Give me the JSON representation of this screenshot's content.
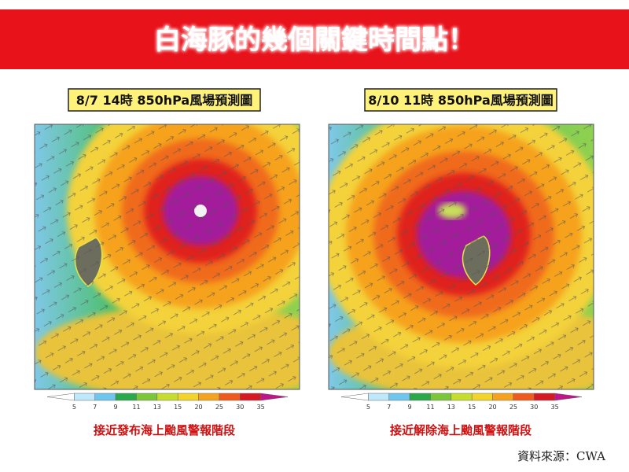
{
  "header": {
    "title": "白海豚的幾個關鍵時間點！"
  },
  "panels": [
    {
      "label": "8/7 14時 850hPa風場預測圖",
      "colorbar_ticks": [
        5,
        7,
        9,
        11,
        13,
        15,
        20,
        25,
        30,
        35
      ],
      "caption": "接近發布海上颱風警報階段"
    },
    {
      "label": "8/10 11時 850hPa風場預測圖",
      "colorbar_ticks": [
        5,
        7,
        9,
        11,
        13,
        15,
        20,
        25,
        30,
        35
      ],
      "caption": "接近解除海上颱風警報階段"
    }
  ],
  "source": "資料來源：CWA"
}
